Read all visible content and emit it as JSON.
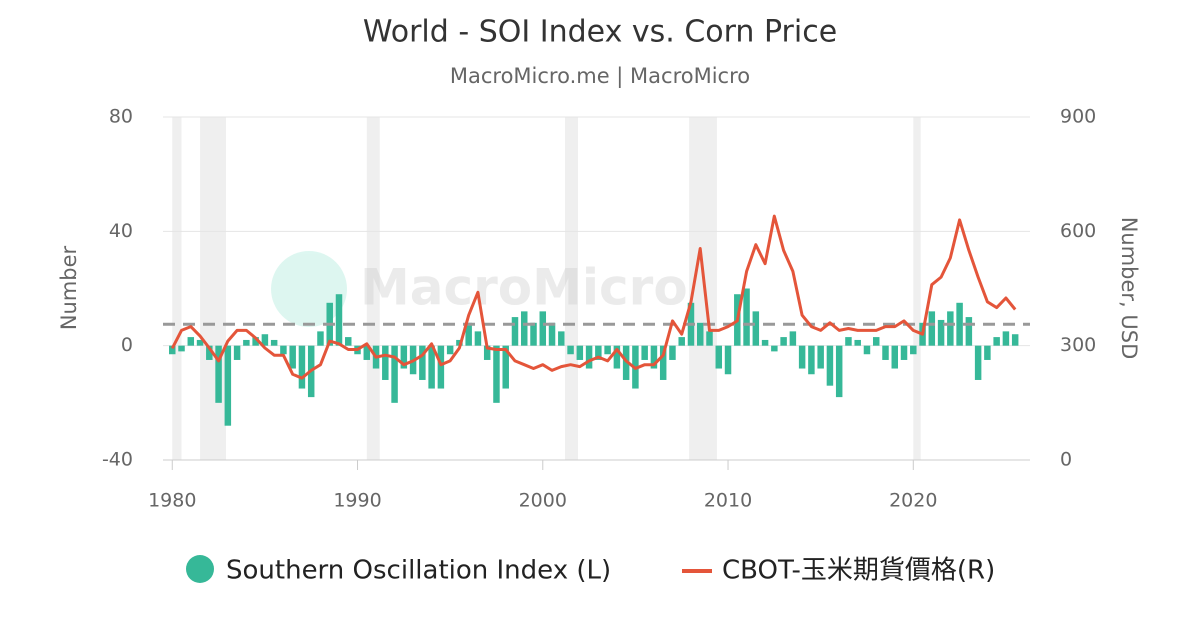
{
  "chart_data": {
    "type": "bar-line",
    "title": "World - SOI Index vs. Corn Price",
    "subtitle": "MacroMicro.me | MacroMicro",
    "watermark": "MacroMicro",
    "y_label": "Number",
    "y2_label": "Number, USD",
    "xlim": [
      1979.5,
      2026.3
    ],
    "xticks": [
      1980,
      1990,
      2000,
      2010,
      2020
    ],
    "ylim": [
      -40,
      80
    ],
    "yticks": [
      -40,
      0,
      40,
      80
    ],
    "y2lim": [
      0,
      900
    ],
    "y2ticks": [
      0,
      300,
      600,
      900
    ],
    "grid": true,
    "reference_line": 7.5,
    "shaded_ranges": [
      [
        1980.0,
        1980.5
      ],
      [
        1981.5,
        1982.9
      ],
      [
        1990.5,
        1991.2
      ],
      [
        2001.2,
        2001.9
      ],
      [
        2007.9,
        2009.4
      ],
      [
        2020.0,
        2020.4
      ]
    ],
    "x": [
      1980,
      1980.5,
      1981,
      1981.5,
      1982,
      1982.5,
      1983,
      1983.5,
      1984,
      1984.5,
      1985,
      1985.5,
      1986,
      1986.5,
      1987,
      1987.5,
      1988,
      1988.5,
      1989,
      1989.5,
      1990,
      1990.5,
      1991,
      1991.5,
      1992,
      1992.5,
      1993,
      1993.5,
      1994,
      1994.5,
      1995,
      1995.5,
      1996,
      1996.5,
      1997,
      1997.5,
      1998,
      1998.5,
      1999,
      1999.5,
      2000,
      2000.5,
      2001,
      2001.5,
      2002,
      2002.5,
      2003,
      2003.5,
      2004,
      2004.5,
      2005,
      2005.5,
      2006,
      2006.5,
      2007,
      2007.5,
      2008,
      2008.5,
      2009,
      2009.5,
      2010,
      2010.5,
      2011,
      2011.5,
      2012,
      2012.5,
      2013,
      2013.5,
      2014,
      2014.5,
      2015,
      2015.5,
      2016,
      2016.5,
      2017,
      2017.5,
      2018,
      2018.5,
      2019,
      2019.5,
      2020,
      2020.5,
      2021,
      2021.5,
      2022,
      2022.5,
      2023,
      2023.5,
      2024,
      2024.5,
      2025,
      2025.5
    ],
    "series": [
      {
        "name": "Southern Oscillation Index (L)",
        "color": "#36b898",
        "marker": "bar",
        "values": [
          -3,
          -2,
          3,
          2,
          -5,
          -20,
          -28,
          -5,
          2,
          3,
          4,
          2,
          -3,
          -8,
          -15,
          -18,
          5,
          15,
          18,
          3,
          -3,
          -5,
          -8,
          -12,
          -20,
          -8,
          -10,
          -12,
          -15,
          -15,
          -3,
          2,
          8,
          5,
          -5,
          -20,
          -15,
          10,
          12,
          8,
          12,
          8,
          5,
          -3,
          -5,
          -8,
          -5,
          -3,
          -8,
          -12,
          -15,
          -5,
          -8,
          -12,
          -5,
          3,
          15,
          8,
          5,
          -8,
          -10,
          18,
          20,
          12,
          2,
          -2,
          3,
          5,
          -8,
          -10,
          -8,
          -14,
          -18,
          3,
          2,
          -3,
          3,
          -5,
          -8,
          -5,
          -3,
          8,
          12,
          9,
          12,
          15,
          10,
          -12,
          -5,
          3,
          5,
          4
        ]
      },
      {
        "name": "CBOT-玉米期貨價格(R)",
        "color": "#e4553a",
        "marker": "line",
        "axis": "y2",
        "values": [
          293,
          340,
          350,
          325,
          294,
          260,
          312,
          340,
          340,
          320,
          294,
          275,
          275,
          225,
          215,
          235,
          250,
          312,
          305,
          290,
          290,
          305,
          270,
          275,
          270,
          250,
          260,
          275,
          305,
          250,
          260,
          294,
          380,
          440,
          294,
          290,
          290,
          260,
          250,
          240,
          250,
          235,
          245,
          250,
          245,
          260,
          270,
          260,
          290,
          260,
          240,
          250,
          250,
          275,
          365,
          330,
          415,
          555,
          340,
          340,
          350,
          365,
          495,
          565,
          515,
          640,
          550,
          495,
          380,
          350,
          340,
          360,
          340,
          345,
          340,
          340,
          340,
          350,
          350,
          365,
          340,
          330,
          460,
          480,
          530,
          630,
          550,
          480,
          415,
          400,
          425,
          395
        ]
      }
    ]
  }
}
